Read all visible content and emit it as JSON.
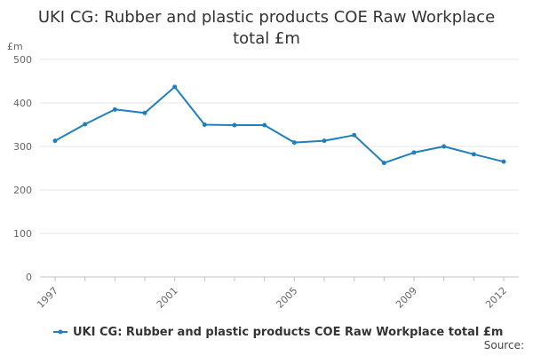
{
  "chart_data": {
    "type": "line",
    "title": "UKI CG: Rubber and plastic products COE Raw Workplace total £m",
    "ylabel": "£m",
    "xlabel": "",
    "x": [
      1997,
      1998,
      1999,
      2000,
      2001,
      2002,
      2003,
      2004,
      2005,
      2006,
      2007,
      2008,
      2009,
      2010,
      2011,
      2012
    ],
    "x_tick_labels": [
      "1997",
      "2001",
      "2005",
      "2009",
      "2012"
    ],
    "y_ticks": [
      0,
      100,
      200,
      300,
      400,
      500
    ],
    "ylim": [
      0,
      500
    ],
    "grid": true,
    "legend_position": "bottom",
    "series": [
      {
        "name": "UKI CG: Rubber and plastic products COE Raw Workplace total £m",
        "color": "#1f7fbf",
        "values": [
          313,
          351,
          385,
          377,
          437,
          350,
          349,
          349,
          309,
          313,
          326,
          262,
          286,
          300,
          282,
          265
        ]
      }
    ]
  },
  "footer": {
    "source_label": "Source:"
  }
}
